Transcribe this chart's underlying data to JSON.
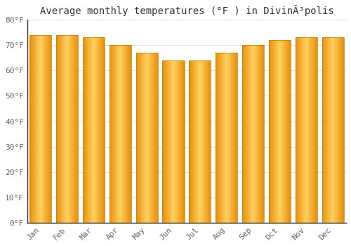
{
  "title": "Average monthly temperatures (°F ) in DivinÃ³polis",
  "months": [
    "Jan",
    "Feb",
    "Mar",
    "Apr",
    "May",
    "Jun",
    "Jul",
    "Aug",
    "Sep",
    "Oct",
    "Nov",
    "Dec"
  ],
  "values": [
    74,
    74,
    73,
    70,
    67,
    64,
    64,
    67,
    70,
    72,
    73,
    73
  ],
  "ylim": [
    0,
    80
  ],
  "yticks": [
    0,
    10,
    20,
    30,
    40,
    50,
    60,
    70,
    80
  ],
  "ytick_labels": [
    "0°F",
    "10°F",
    "20°F",
    "30°F",
    "40°F",
    "50°F",
    "60°F",
    "70°F",
    "80°F"
  ],
  "bar_color_dark": "#E8900A",
  "bar_color_light": "#FFD060",
  "bar_edge_color": "#C07800",
  "background_color": "#FFFFFF",
  "grid_color": "#E0E0E0",
  "title_fontsize": 10,
  "tick_fontsize": 8,
  "bar_width": 0.82
}
